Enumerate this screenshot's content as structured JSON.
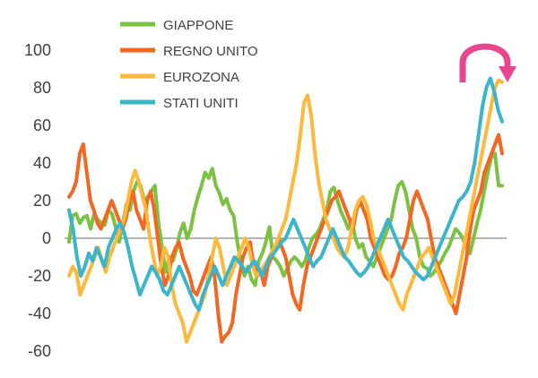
{
  "chart_data": {
    "type": "line",
    "title": "",
    "xlabel": "",
    "ylabel": "",
    "ylim": [
      -60,
      100
    ],
    "yticks": [
      100,
      80,
      60,
      40,
      20,
      0,
      -20,
      -40,
      -60
    ],
    "ytick_labels": [
      "100",
      "80",
      "60",
      "40",
      "20",
      "0",
      "-20",
      "-40",
      "-60"
    ],
    "legend_position": "top-center",
    "grid": false,
    "zero_line": true,
    "annotation": "pink-curved-arrow",
    "series": [
      {
        "name": "GIAPPONE",
        "color": "#7cc242",
        "values": [
          -2,
          12,
          13,
          8,
          11,
          12,
          5,
          13,
          10,
          8,
          7,
          15,
          13,
          6,
          -2,
          8,
          18,
          15,
          25,
          30,
          28,
          20,
          22,
          25,
          28,
          8,
          -5,
          -18,
          -10,
          -12,
          -6,
          3,
          8,
          0,
          5,
          15,
          22,
          28,
          35,
          32,
          37,
          28,
          24,
          18,
          21,
          15,
          12,
          -2,
          -12,
          -20,
          -15,
          -22,
          -25,
          -12,
          -8,
          -2,
          6,
          -10,
          -12,
          -15,
          -20,
          -16,
          -12,
          -10,
          -12,
          -15,
          -12,
          -5,
          0,
          2,
          5,
          10,
          15,
          25,
          27,
          20,
          14,
          10,
          5,
          10,
          0,
          -5,
          -3,
          -10,
          -12,
          -15,
          -10,
          -5,
          0,
          5,
          10,
          20,
          28,
          30,
          25,
          15,
          5,
          0,
          -10,
          -15,
          -16,
          -20,
          -18,
          -15,
          -12,
          -8,
          -5,
          0,
          5,
          3,
          0,
          -5,
          -8,
          0,
          8,
          15,
          25,
          35,
          43,
          45,
          28,
          28
        ]
      },
      {
        "name": "REGNO UNITO",
        "color": "#f26722",
        "values": [
          22,
          25,
          30,
          45,
          50,
          35,
          20,
          15,
          8,
          5,
          10,
          15,
          20,
          15,
          10,
          5,
          10,
          20,
          25,
          15,
          10,
          5,
          20,
          25,
          15,
          0,
          -15,
          -25,
          -20,
          -10,
          -5,
          -2,
          -10,
          -15,
          -20,
          -28,
          -30,
          -25,
          -20,
          -15,
          -10,
          -20,
          -40,
          -55,
          -52,
          -50,
          -45,
          -30,
          -20,
          -10,
          -5,
          -2,
          -15,
          -20,
          -18,
          -25,
          -15,
          -10,
          -5,
          0,
          -5,
          -10,
          -20,
          -30,
          -35,
          -38,
          -25,
          -15,
          -10,
          -5,
          0,
          5,
          10,
          15,
          20,
          22,
          25,
          20,
          15,
          10,
          5,
          15,
          20,
          15,
          10,
          0,
          -5,
          -10,
          -15,
          -20,
          -22,
          -20,
          -15,
          -8,
          -5,
          0,
          10,
          20,
          25,
          20,
          15,
          10,
          0,
          -10,
          -15,
          -20,
          -25,
          -30,
          -35,
          -40,
          -30,
          -20,
          -10,
          5,
          15,
          20,
          25,
          35,
          40,
          45,
          50,
          55,
          45
        ]
      },
      {
        "name": "EUROZONA",
        "color": "#fdb93b",
        "values": [
          -20,
          -15,
          -18,
          -30,
          -25,
          -20,
          -15,
          -10,
          -5,
          -12,
          -18,
          -10,
          -5,
          0,
          5,
          10,
          20,
          30,
          36,
          30,
          22,
          15,
          0,
          -10,
          -20,
          -15,
          -5,
          -10,
          -25,
          -35,
          -40,
          -45,
          -55,
          -50,
          -45,
          -40,
          -35,
          -30,
          -20,
          -10,
          0,
          -5,
          -15,
          -25,
          -20,
          -15,
          -10,
          -5,
          0,
          -5,
          -15,
          -20,
          -18,
          -15,
          -12,
          -8,
          -5,
          0,
          5,
          10,
          20,
          30,
          40,
          55,
          72,
          76,
          65,
          45,
          30,
          20,
          10,
          5,
          0,
          -5,
          -8,
          -10,
          -5,
          5,
          15,
          20,
          22,
          18,
          10,
          0,
          -5,
          -10,
          -15,
          -20,
          -25,
          -30,
          -35,
          -38,
          -30,
          -25,
          -20,
          -15,
          -10,
          -8,
          -5,
          -10,
          -15,
          -20,
          -25,
          -30,
          -35,
          -30,
          -20,
          -10,
          0,
          10,
          20,
          30,
          40,
          50,
          60,
          70,
          80,
          84,
          83
        ]
      },
      {
        "name": "STATI UNITI",
        "color": "#3bb5c9",
        "values": [
          15,
          5,
          -10,
          -20,
          -15,
          -8,
          -12,
          -5,
          -10,
          -15,
          -5,
          0,
          5,
          8,
          3,
          -5,
          -15,
          -22,
          -30,
          -25,
          -20,
          -15,
          -18,
          -22,
          -28,
          -30,
          -25,
          -20,
          -15,
          -20,
          -25,
          -30,
          -35,
          -38,
          -30,
          -25,
          -20,
          -15,
          -20,
          -25,
          -20,
          -15,
          -10,
          -12,
          -15,
          -18,
          -15,
          -12,
          -15,
          -20,
          -15,
          -10,
          -8,
          -5,
          -2,
          0,
          5,
          10,
          5,
          0,
          -5,
          -10,
          -15,
          -12,
          -10,
          -5,
          0,
          5,
          0,
          -5,
          -10,
          -12,
          -15,
          -18,
          -20,
          -18,
          -15,
          -10,
          -5,
          0,
          5,
          10,
          5,
          0,
          -5,
          -10,
          -12,
          -15,
          -18,
          -20,
          -22,
          -20,
          -15,
          -10,
          -5,
          0,
          5,
          10,
          15,
          20,
          22,
          25,
          30,
          40,
          55,
          70,
          80,
          85,
          78,
          68,
          62
        ]
      }
    ]
  }
}
